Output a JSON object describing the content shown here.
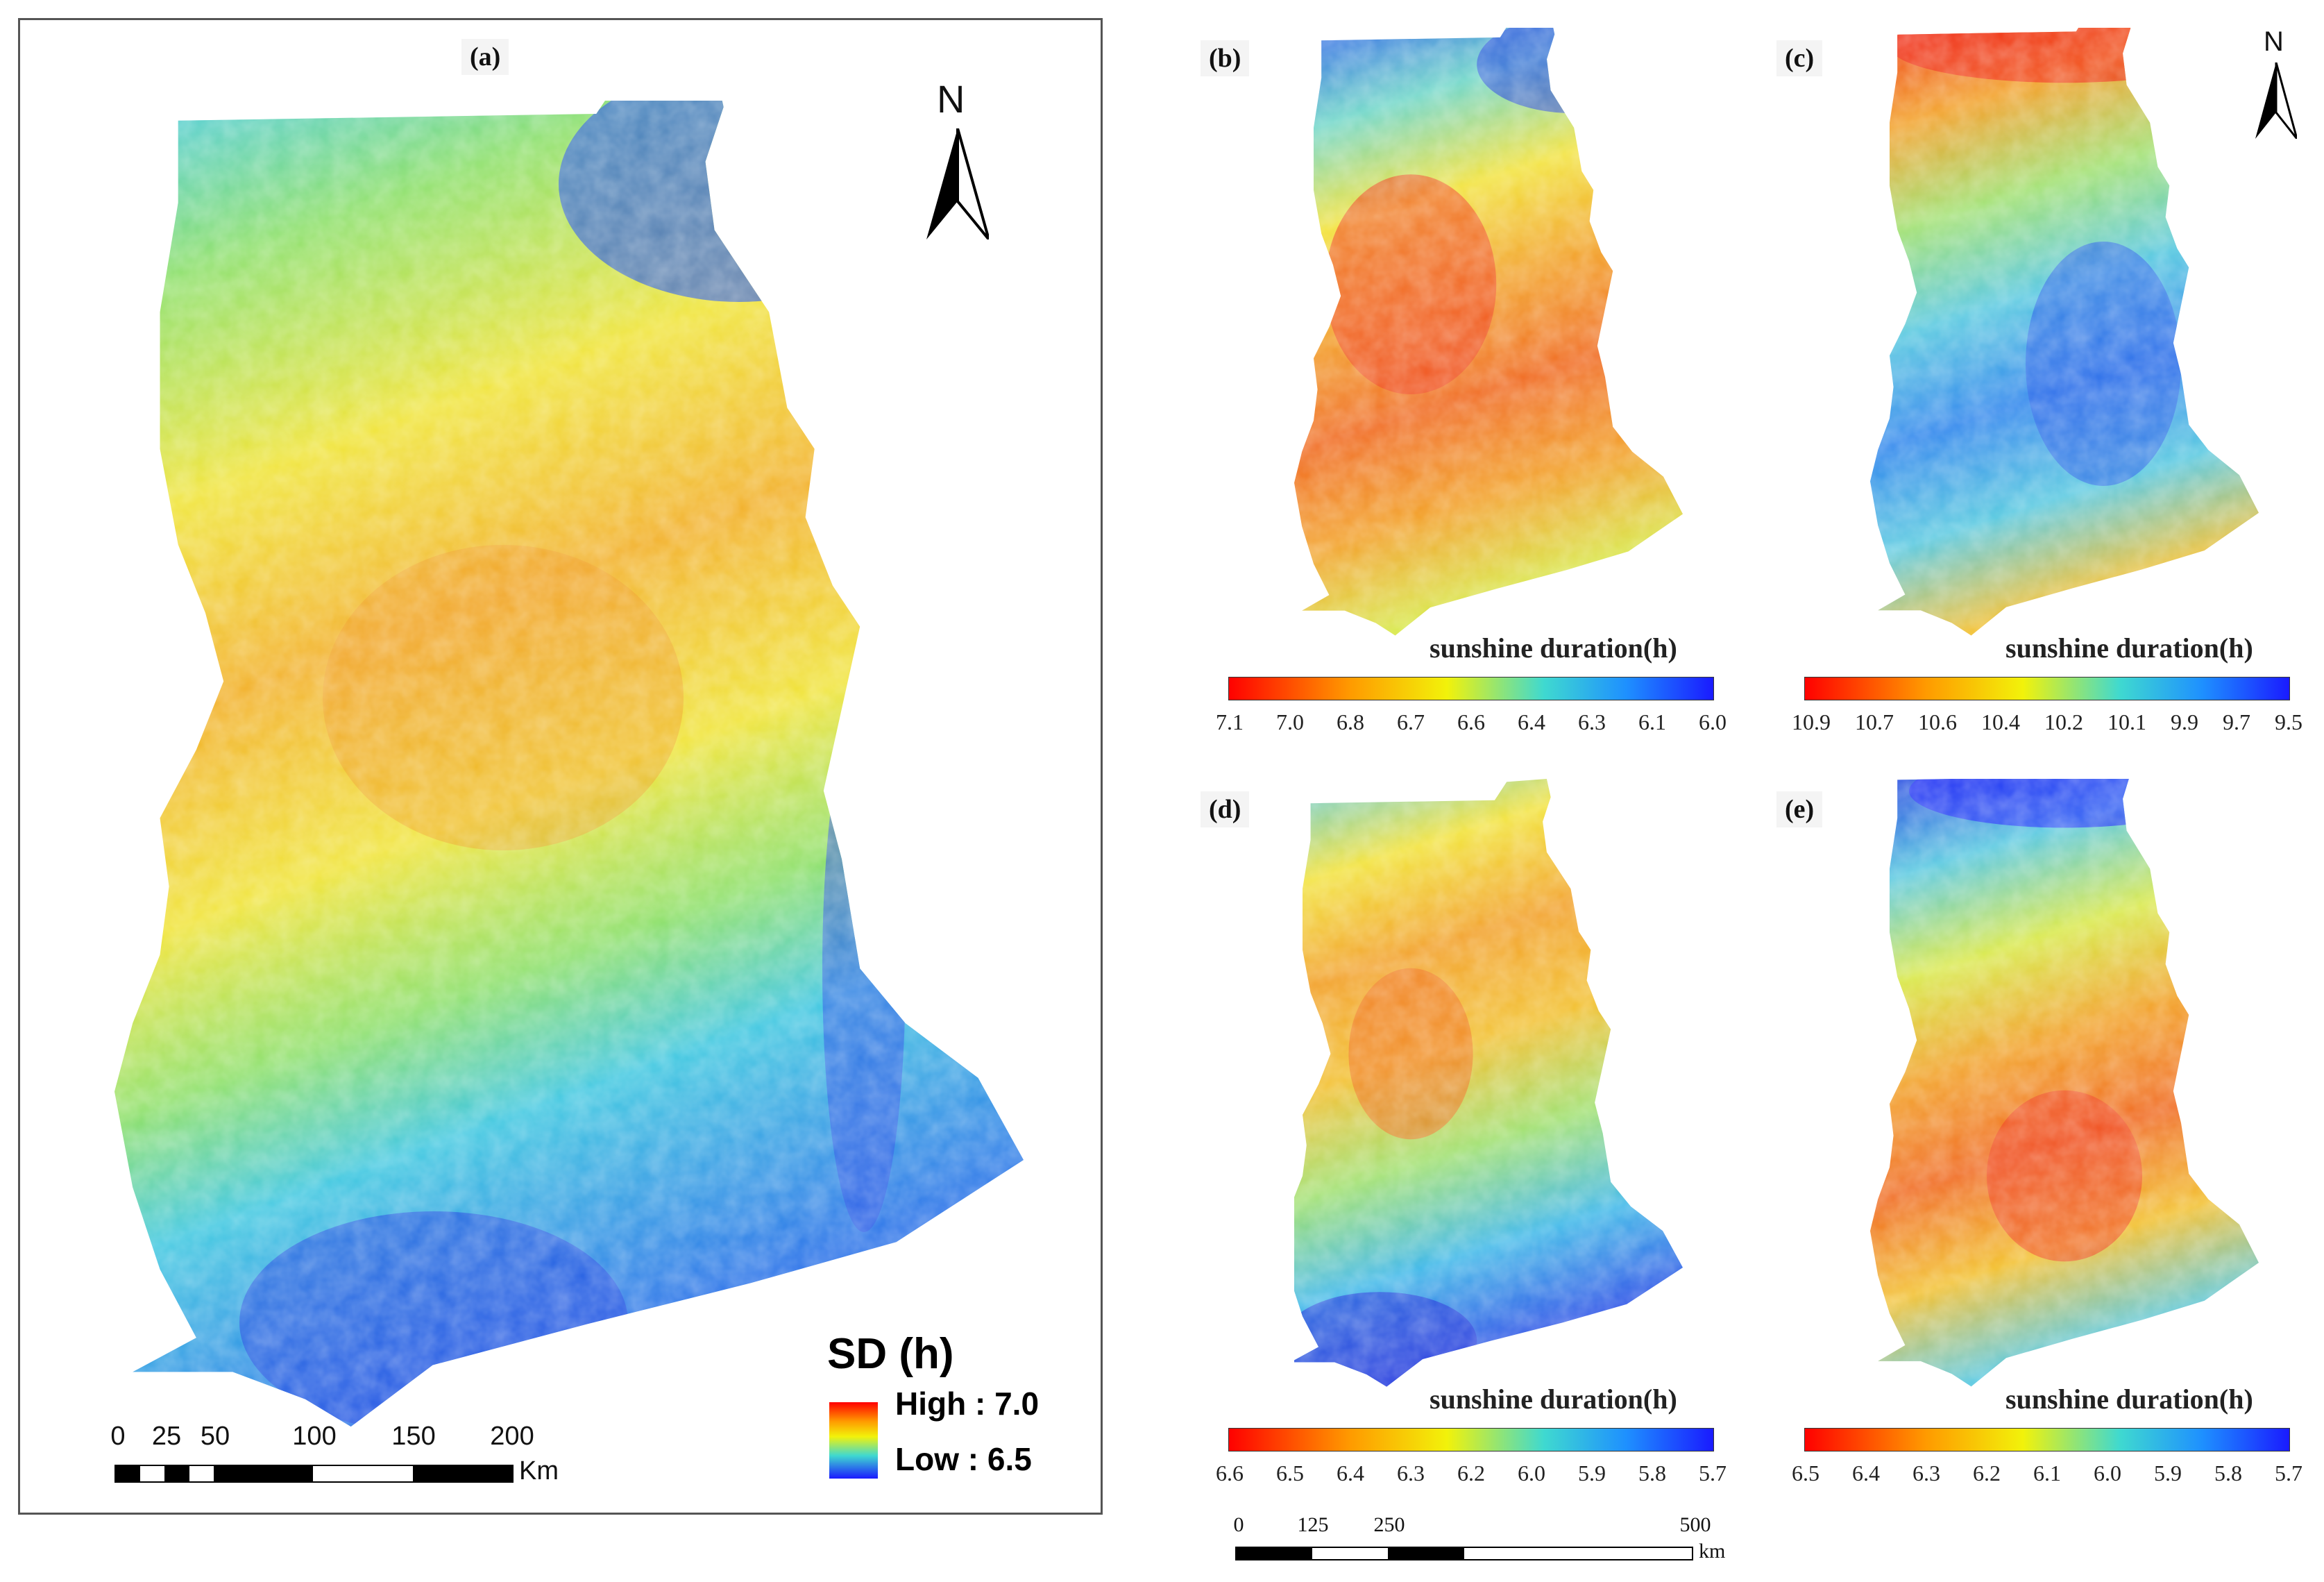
{
  "colors": {
    "red": "#ff0000",
    "orange": "#ff9a00",
    "yellow": "#f2f20a",
    "cyan": "#3fd9d0",
    "blue": "#1a1aff"
  },
  "north_arrow_label": "N",
  "panel_a": {
    "label": "(a)",
    "legend_title": "SD (h)",
    "legend_high": "High : 7.0",
    "legend_low": "Low : 6.5",
    "scale_numbers": [
      "0",
      "25",
      "50",
      "100",
      "150",
      "200"
    ],
    "scale_unit": "Km"
  },
  "panels": [
    {
      "label": "(b)",
      "title": "sunshine duration(h)",
      "ticks": [
        "7.1",
        "7.0",
        "6.8",
        "6.7",
        "6.6",
        "6.4",
        "6.3",
        "6.1",
        "6.0"
      ],
      "pattern": "b"
    },
    {
      "label": "(c)",
      "title": "sunshine duration(h)",
      "ticks": [
        "10.9",
        "10.7",
        "10.6",
        "10.4",
        "10.2",
        "10.1",
        "9.9",
        "9.7",
        "9.5"
      ],
      "pattern": "c"
    },
    {
      "label": "(d)",
      "title": "sunshine duration(h)",
      "ticks": [
        "6.6",
        "6.5",
        "6.4",
        "6.3",
        "6.2",
        "6.0",
        "5.9",
        "5.8",
        "5.7"
      ],
      "pattern": "d"
    },
    {
      "label": "(e)",
      "title": "sunshine duration(h)",
      "ticks": [
        "6.5",
        "6.4",
        "6.3",
        "6.2",
        "6.1",
        "6.0",
        "5.9",
        "5.8",
        "5.7"
      ],
      "pattern": "e"
    }
  ],
  "small_scale": {
    "numbers": [
      "0",
      "125",
      "250",
      "500"
    ],
    "unit": "km"
  }
}
